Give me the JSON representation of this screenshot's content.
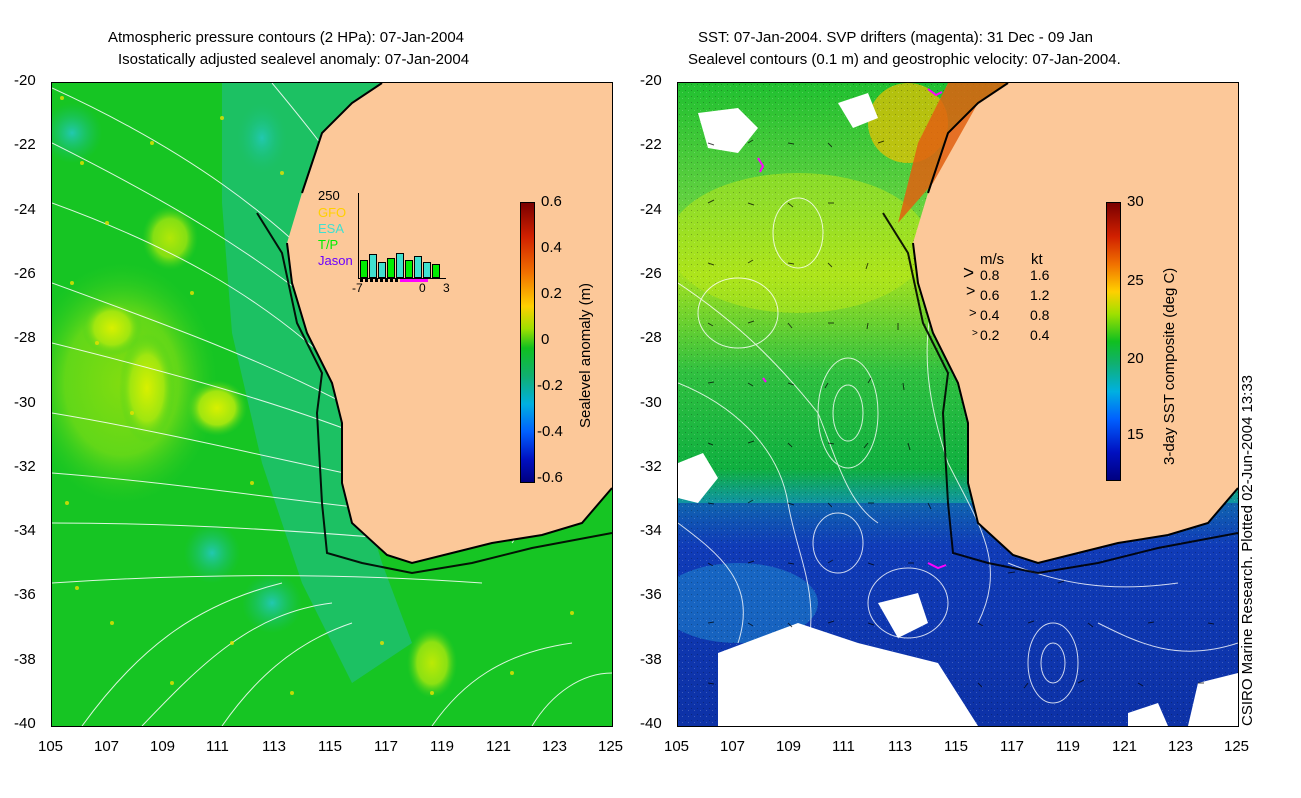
{
  "left": {
    "title1": "Atmospheric pressure contours (2 HPa): 07-Jan-2004",
    "title2": "Isostatically adjusted sealevel anomaly: 07-Jan-2004",
    "colorbar": {
      "label": "Sealevel anomaly (m)",
      "ticks": [
        "0.6",
        "0.4",
        "0.2",
        "0",
        "-0.2",
        "-0.4",
        "-0.6"
      ]
    },
    "inset": {
      "ymax": "250",
      "series": [
        "GFO",
        "ESA",
        "T/P",
        "Jason"
      ],
      "series_colors": [
        "#ffd000",
        "#40e0d0",
        "#00ee00",
        "#6a00ff"
      ],
      "xticks": [
        "-7",
        "0",
        "3"
      ]
    }
  },
  "right": {
    "title1": "SST: 07-Jan-2004. SVP drifters (magenta): 31 Dec - 09 Jan",
    "title2": "Sealevel contours (0.1 m) and geostrophic velocity: 07-Jan-2004.",
    "colorbar": {
      "label": "3-day SST composite (deg C)",
      "ticks": [
        "30",
        "25",
        "20",
        "15"
      ]
    },
    "vector_legend": {
      "header_ms": "m/s",
      "header_kt": "kt",
      "rows": [
        {
          "ms": "0.8",
          "kt": "1.6"
        },
        {
          "ms": "0.6",
          "kt": "1.2"
        },
        {
          "ms": "0.4",
          "kt": "0.8"
        },
        {
          "ms": "0.2",
          "kt": "0.4"
        }
      ]
    }
  },
  "axes": {
    "yticks": [
      "-20",
      "-22",
      "-24",
      "-26",
      "-28",
      "-30",
      "-32",
      "-34",
      "-36",
      "-38",
      "-40"
    ],
    "xticks": [
      "105",
      "107",
      "109",
      "111",
      "113",
      "115",
      "117",
      "119",
      "121",
      "123",
      "125"
    ]
  },
  "credit": "CSIRO Marine Research. Plotted 02-Jun-2004 13:33",
  "colors": {
    "land": "#fcc899",
    "ocean_sla": "#12c61e",
    "sst_cold": "#1f3fbf",
    "sst_warm": "#5ad05a"
  }
}
